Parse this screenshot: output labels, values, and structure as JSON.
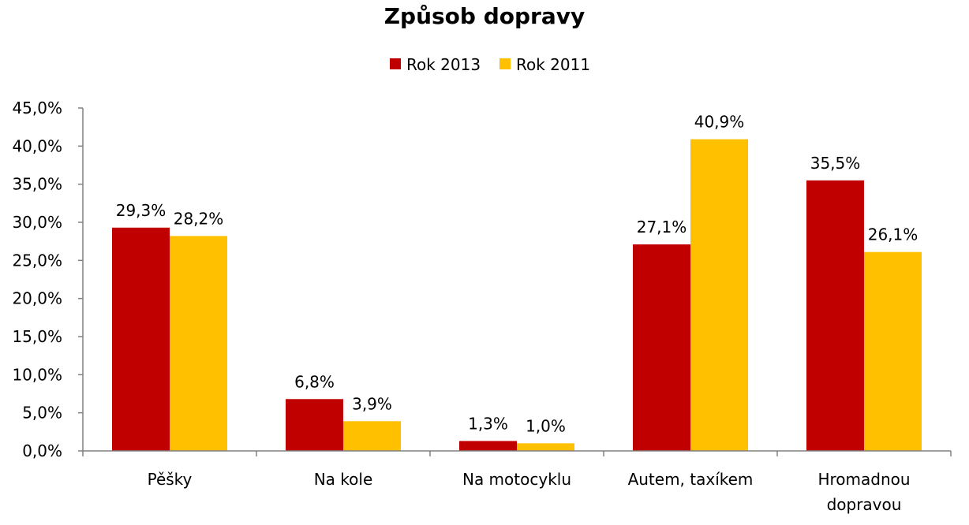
{
  "chart_data": {
    "type": "bar",
    "title": "Způsob dopravy",
    "xlabel": "",
    "ylabel": "",
    "ylim": [
      0,
      45
    ],
    "yticks": [
      "0,0%",
      "5,0%",
      "10,0%",
      "15,0%",
      "20,0%",
      "25,0%",
      "30,0%",
      "35,0%",
      "40,0%",
      "45,0%"
    ],
    "grid": false,
    "legend_position": "top",
    "categories": [
      [
        "Pěšky"
      ],
      [
        "Na kole"
      ],
      [
        "Na motocyklu"
      ],
      [
        "Autem, taxíkem"
      ],
      [
        "Hromadnou",
        "dopravou"
      ]
    ],
    "series": [
      {
        "name": "Rok 2013",
        "color": "#C00000",
        "values": [
          29.3,
          6.8,
          1.3,
          27.1,
          35.5
        ],
        "labels": [
          "29,3%",
          "6,8%",
          "1,3%",
          "27,1%",
          "35,5%"
        ]
      },
      {
        "name": "Rok 2011",
        "color": "#FFC000",
        "values": [
          28.2,
          3.9,
          1.0,
          40.9,
          26.1
        ],
        "labels": [
          "28,2%",
          "3,9%",
          "1,0%",
          "40,9%",
          "26,1%"
        ]
      }
    ]
  }
}
